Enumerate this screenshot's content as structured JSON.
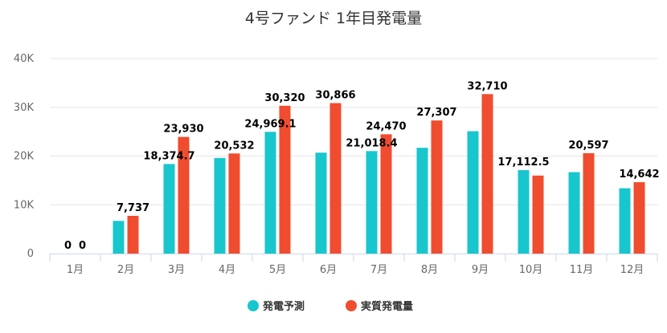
{
  "chart_data": {
    "type": "bar",
    "title": "4号ファンド 1年目発電量",
    "categories": [
      "1月",
      "2月",
      "3月",
      "4月",
      "5月",
      "6月",
      "7月",
      "8月",
      "9月",
      "10月",
      "11月",
      "12月"
    ],
    "y_ticks": [
      "0",
      "10K",
      "20K",
      "30K",
      "40K"
    ],
    "ylim": [
      0,
      40000
    ],
    "grid": true,
    "legend_position": "bottom",
    "series": [
      {
        "name": "発電予測",
        "color": "#18c6ce",
        "values": [
          0,
          6700,
          18374.7,
          19600,
          24969.1,
          20700,
          21018.4,
          21700,
          25100,
          17112.5,
          16700,
          13400
        ],
        "labels": [
          "0",
          null,
          "18,374.7",
          null,
          "24,969.1",
          null,
          "21,018.4",
          null,
          null,
          "17,112.5",
          null,
          null
        ]
      },
      {
        "name": "実質発電量",
        "color": "#f04c2f",
        "values": [
          0,
          7737,
          23930,
          20532,
          30320,
          30866,
          24470,
          27307,
          32710,
          16000,
          20597,
          14642
        ],
        "labels": [
          "0",
          "7,737",
          "23,930",
          "20,532",
          "30,320",
          "30,866",
          "24,470",
          "27,307",
          "32,710",
          null,
          "20,597",
          "14,642"
        ]
      }
    ]
  }
}
